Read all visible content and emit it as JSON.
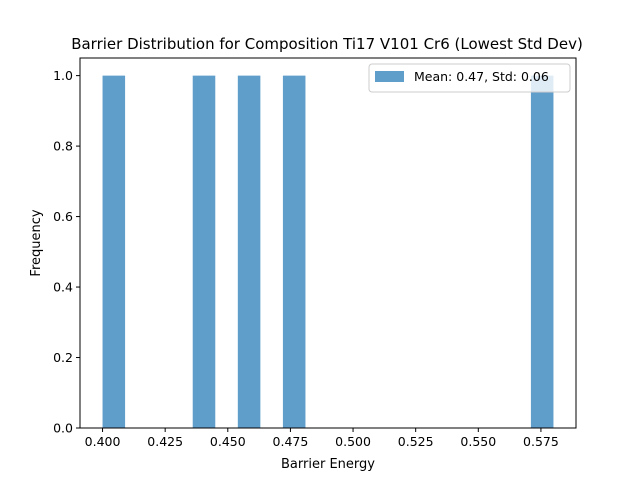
{
  "chart_data": {
    "type": "bar",
    "title": "Barrier Distribution for Composition Ti17 V101 Cr6 (Lowest Std Dev)",
    "xlabel": "Barrier Energy",
    "ylabel": "Frequency",
    "xlim": [
      0.391,
      0.589
    ],
    "ylim": [
      0.0,
      1.05
    ],
    "grid": false,
    "legend_position": "top-right",
    "bar_color": "#5f9ecb",
    "bin_width": 0.009,
    "series": [
      {
        "name": "Mean: 0.47, Std: 0.06",
        "bins": [
          {
            "start": 0.4,
            "end": 0.409,
            "value": 1.0
          },
          {
            "start": 0.436,
            "end": 0.445,
            "value": 1.0
          },
          {
            "start": 0.454,
            "end": 0.463,
            "value": 1.0
          },
          {
            "start": 0.472,
            "end": 0.481,
            "value": 1.0
          },
          {
            "start": 0.571,
            "end": 0.58,
            "value": 1.0
          }
        ]
      }
    ],
    "x_ticks": [
      0.4,
      0.425,
      0.45,
      0.475,
      0.5,
      0.525,
      0.55,
      0.575
    ],
    "x_tick_labels": [
      "0.400",
      "0.425",
      "0.450",
      "0.475",
      "0.500",
      "0.525",
      "0.550",
      "0.575"
    ],
    "y_ticks": [
      0.0,
      0.2,
      0.4,
      0.6,
      0.8,
      1.0
    ],
    "y_tick_labels": [
      "0.0",
      "0.2",
      "0.4",
      "0.6",
      "0.8",
      "1.0"
    ]
  }
}
